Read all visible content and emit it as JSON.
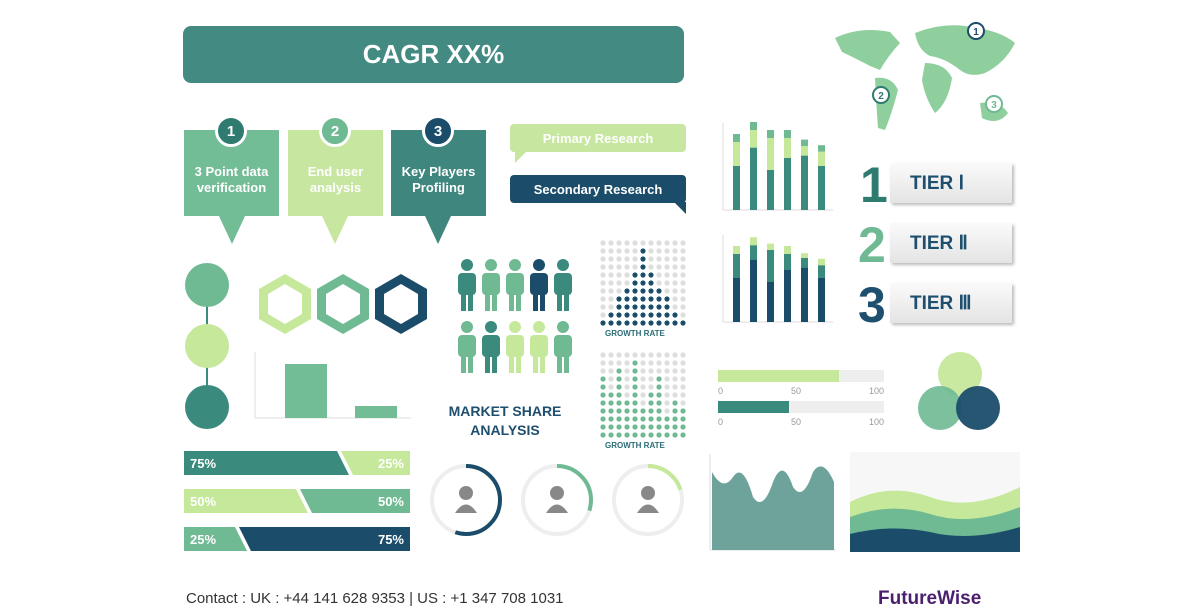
{
  "header": {
    "title": "CAGR XX%"
  },
  "steps": [
    {
      "number": "1",
      "label": "3 Point data verification",
      "color": "#72bc96"
    },
    {
      "number": "2",
      "label": "End user analysis",
      "color": "#c7e6a0"
    },
    {
      "number": "3",
      "label": "Key Players Profiling",
      "color": "#3f877e"
    }
  ],
  "research": {
    "primary": "Primary Research",
    "secondary": "Secondary Research"
  },
  "tiers": [
    {
      "number": "1",
      "label": "TIER Ⅰ"
    },
    {
      "number": "2",
      "label": "TIER Ⅱ"
    },
    {
      "number": "3",
      "label": "TIER Ⅲ"
    }
  ],
  "market_share": {
    "title": "MARKET SHARE ANALYSIS"
  },
  "growth_rate": {
    "label1": "GROWTH RATE",
    "label2": "GROWTH RATE"
  },
  "progress_bars": [
    {
      "value": 73,
      "color": "#c5e89a",
      "ticks": [
        "0",
        "50",
        "100"
      ]
    },
    {
      "value": 43,
      "color": "#3a8a7e",
      "ticks": [
        "0",
        "50",
        "100"
      ]
    }
  ],
  "percent_bars": [
    {
      "left": "75%",
      "right": "25%",
      "left_color": "#3a8a7e",
      "right_color": "#c5e89a"
    },
    {
      "left": "50%",
      "right": "50%",
      "left_color": "#c5e89a",
      "right_color": "#6fb993"
    },
    {
      "left": "25%",
      "right": "75%",
      "left_color": "#6fb993",
      "right_color": "#1b4d6b"
    }
  ],
  "donuts": [
    {
      "value": 55,
      "color": "#1b4d6b"
    },
    {
      "value": 30,
      "color": "#6fb993"
    },
    {
      "value": 20,
      "color": "#c5e89a"
    }
  ],
  "footer": {
    "contact": "Contact : UK : +44 141 628 9353 | US : +1 347 708 1031",
    "logo": "FutureWise"
  },
  "colors": {
    "teal": "#3a8a7e",
    "green": "#6fb993",
    "light_green": "#c5e89a",
    "navy": "#1b4d6b"
  }
}
